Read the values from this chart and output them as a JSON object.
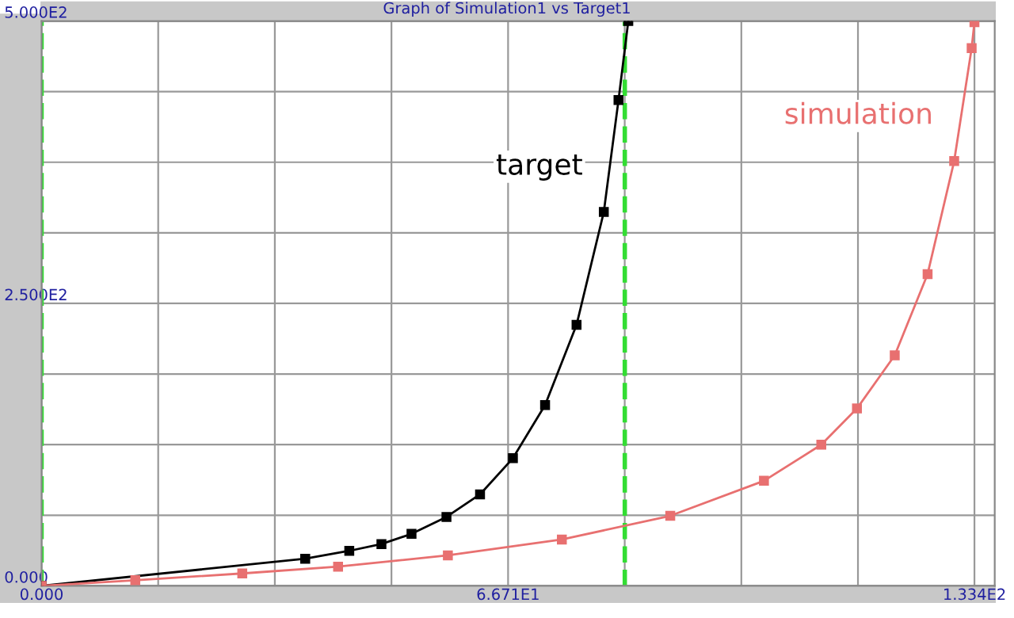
{
  "chart_data": {
    "type": "line",
    "title": "Graph of Simulation1 vs Target1",
    "series": [
      {
        "name": "target",
        "color": "#000000",
        "x": [
          0,
          37.7,
          44.0,
          48.6,
          52.9,
          57.9,
          62.7,
          67.4,
          72.0,
          76.5,
          80.4,
          82.5,
          83.9
        ],
        "values": [
          0,
          24,
          31,
          37,
          46,
          61,
          81,
          113,
          160,
          231,
          331,
          430,
          500
        ]
      },
      {
        "name": "simulation",
        "color": "#e87070",
        "x": [
          0,
          13.4,
          28.7,
          42.4,
          58.1,
          74.4,
          89.9,
          103.3,
          111.5,
          116.6,
          122.0,
          126.7,
          130.5,
          133.0,
          133.4
        ],
        "values": [
          0,
          5,
          11,
          17,
          27,
          41,
          62,
          93,
          125,
          157,
          204,
          276,
          376,
          476,
          499
        ]
      }
    ],
    "xlim": [
      0,
      136.3
    ],
    "ylim": [
      0,
      500
    ],
    "xticks": [
      {
        "value": 0,
        "label": "0.000"
      },
      {
        "value": 16.6775,
        "label": null
      },
      {
        "value": 33.355,
        "label": null
      },
      {
        "value": 50.0325,
        "label": null
      },
      {
        "value": 66.71,
        "label": "6.671E1"
      },
      {
        "value": 83.3875,
        "label": null
      },
      {
        "value": 100.065,
        "label": null
      },
      {
        "value": 116.7425,
        "label": null
      },
      {
        "value": 133.4,
        "label": "1.334E2"
      }
    ],
    "yticks": [
      {
        "value": 0,
        "label": "0.000"
      },
      {
        "value": 62.5,
        "label": null
      },
      {
        "value": 125,
        "label": null
      },
      {
        "value": 187.5,
        "label": null
      },
      {
        "value": 250,
        "label": "2.500E2"
      },
      {
        "value": 312.5,
        "label": null
      },
      {
        "value": 375,
        "label": null
      },
      {
        "value": 437.5,
        "label": null
      },
      {
        "value": 500,
        "label": "5.000E2"
      }
    ],
    "ref_lines": [
      {
        "axis": "x",
        "value": 0,
        "color": "#33dd33",
        "line_style": "dashed"
      },
      {
        "axis": "x",
        "value": 83.4,
        "color": "#33dd33",
        "line_style": "dashed"
      }
    ],
    "grid": true,
    "marker": "square",
    "line_style": "solid",
    "legend": false
  }
}
